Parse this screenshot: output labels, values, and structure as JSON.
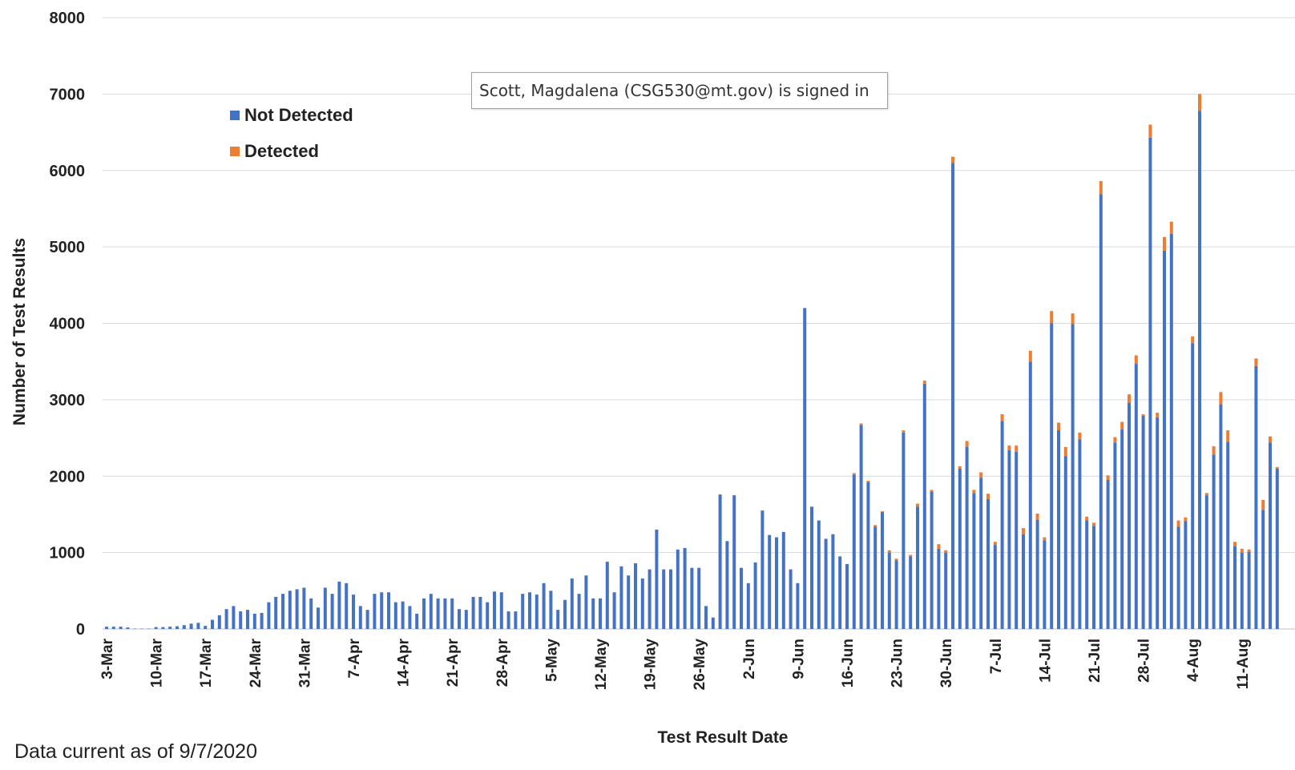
{
  "tooltip_text": "Scott, Magdalena (CSG530@mt.gov) is signed in",
  "footnote": "Data current as of 9/7/2020",
  "colors": {
    "not_detected": "#4472C4",
    "detected": "#ED7D31",
    "grid": "#D9D9D9"
  },
  "chart_data": {
    "type": "bar",
    "stacked": true,
    "title": "",
    "xlabel": "Test Result Date",
    "ylabel": "Number of Test Results",
    "ylim": [
      0,
      8000
    ],
    "yticks": [
      0,
      1000,
      2000,
      3000,
      4000,
      5000,
      6000,
      7000,
      8000
    ],
    "grid": true,
    "legend_position": "top-left",
    "start_date": "3-Mar",
    "x_tick_labels": [
      "3-Mar",
      "10-Mar",
      "17-Mar",
      "24-Mar",
      "31-Mar",
      "7-Apr",
      "14-Apr",
      "21-Apr",
      "28-Apr",
      "5-May",
      "12-May",
      "19-May",
      "26-May",
      "2-Jun",
      "9-Jun",
      "16-Jun",
      "23-Jun",
      "30-Jun",
      "7-Jul",
      "14-Jul",
      "21-Jul",
      "28-Jul",
      "4-Aug",
      "11-Aug"
    ],
    "series": [
      {
        "name": "Not Detected",
        "values": [
          30,
          30,
          30,
          20,
          5,
          5,
          5,
          25,
          25,
          30,
          35,
          50,
          70,
          80,
          40,
          120,
          180,
          260,
          300,
          230,
          250,
          200,
          210,
          350,
          420,
          460,
          500,
          520,
          540,
          400,
          280,
          540,
          460,
          620,
          600,
          450,
          300,
          250,
          460,
          480,
          480,
          350,
          360,
          300,
          200,
          400,
          460,
          400,
          400,
          400,
          260,
          250,
          420,
          420,
          350,
          490,
          480,
          230,
          230,
          460,
          480,
          450,
          600,
          500,
          250,
          380,
          660,
          460,
          700,
          400,
          400,
          880,
          480,
          820,
          700,
          860,
          660,
          780,
          1300,
          780,
          780,
          1040,
          1060,
          800,
          800,
          300,
          150,
          1760,
          1150,
          1750,
          800,
          600,
          870,
          1550,
          1230,
          1200,
          1270,
          780,
          600,
          4200,
          1600,
          1420,
          1180,
          1240,
          950,
          850,
          2020,
          2670,
          1920,
          1340,
          1530,
          1000,
          900,
          2570,
          950,
          1600,
          3210,
          1800,
          1050,
          1000,
          6100,
          2100,
          2380,
          1780,
          1980,
          1700,
          1100,
          2720,
          2340,
          2320,
          1240,
          3500,
          1430,
          1160,
          4000,
          2600,
          2260,
          3990,
          2480,
          1420,
          1350,
          5690,
          1950,
          2440,
          2610,
          2960,
          3470,
          2790,
          6430,
          2770,
          4950,
          5170,
          1340,
          1410,
          3740,
          6780,
          1750,
          2280,
          2940,
          2450,
          1080,
          1000,
          1010,
          3440,
          1560,
          2440,
          2100
        ]
      },
      {
        "name": "Detected",
        "values": [
          0,
          0,
          0,
          0,
          0,
          0,
          0,
          0,
          0,
          0,
          0,
          0,
          0,
          0,
          0,
          0,
          0,
          0,
          0,
          0,
          0,
          0,
          0,
          0,
          0,
          0,
          0,
          0,
          0,
          0,
          0,
          0,
          0,
          0,
          0,
          0,
          0,
          0,
          0,
          0,
          0,
          0,
          0,
          0,
          0,
          0,
          0,
          0,
          0,
          0,
          0,
          0,
          0,
          0,
          0,
          0,
          0,
          0,
          0,
          0,
          0,
          0,
          0,
          0,
          0,
          0,
          0,
          0,
          0,
          0,
          0,
          0,
          0,
          0,
          0,
          0,
          0,
          0,
          0,
          0,
          0,
          0,
          0,
          0,
          0,
          0,
          0,
          0,
          0,
          0,
          0,
          0,
          0,
          0,
          0,
          0,
          0,
          0,
          0,
          0,
          0,
          0,
          0,
          0,
          0,
          0,
          20,
          20,
          20,
          20,
          10,
          30,
          20,
          30,
          20,
          40,
          40,
          20,
          60,
          30,
          80,
          30,
          80,
          40,
          70,
          70,
          40,
          90,
          60,
          80,
          80,
          140,
          80,
          40,
          160,
          100,
          120,
          140,
          90,
          50,
          40,
          170,
          60,
          70,
          100,
          110,
          110,
          20,
          170,
          60,
          180,
          160,
          80,
          50,
          90,
          220,
          30,
          110,
          160,
          150,
          60,
          50,
          30,
          100,
          130,
          80,
          20
        ]
      }
    ]
  }
}
